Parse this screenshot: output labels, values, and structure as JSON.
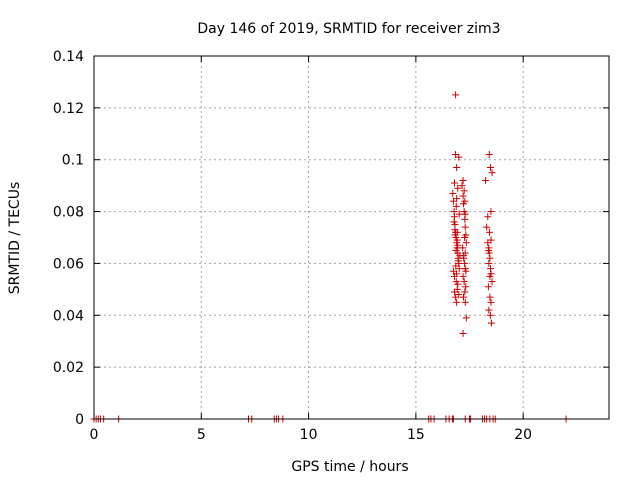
{
  "chart_data": {
    "type": "scatter",
    "title": "Day 146 of 2019, SRMTID for receiver zim3",
    "xlabel": "GPS time / hours",
    "ylabel": "SRMTID / TECUs",
    "xlim": [
      0,
      24
    ],
    "ylim": [
      0,
      0.14
    ],
    "xticks": [
      0,
      5,
      10,
      15,
      20
    ],
    "yticks": [
      0,
      0.02,
      0.04,
      0.06,
      0.08,
      0.1,
      0.12,
      0.14
    ],
    "ytick_labels": [
      "0",
      "0.02",
      "0.04",
      "0.06",
      "0.08",
      "0.1",
      "0.12",
      "0.14"
    ],
    "grid": true,
    "marker": "+",
    "color": "#cc0000",
    "series": [
      {
        "x": [
          0.0,
          0.1,
          0.2,
          0.3,
          0.45,
          1.15,
          7.2,
          7.35,
          8.4,
          8.5,
          8.6,
          8.8,
          15.6,
          15.7,
          15.85,
          16.4,
          16.55,
          16.7,
          16.75,
          17.3,
          17.5,
          17.55,
          18.1,
          18.2,
          18.3,
          18.45,
          18.6,
          18.7,
          22.0,
          16.72,
          16.75,
          16.78,
          16.8,
          16.82,
          16.85,
          16.87,
          16.9,
          16.92,
          16.95,
          16.97,
          17.0,
          17.02,
          16.75,
          16.8,
          16.88,
          16.93,
          17.0,
          16.85,
          16.9,
          16.78,
          16.83,
          16.95,
          17.05,
          16.8,
          16.9,
          17.0,
          16.85,
          16.95,
          16.88,
          16.82,
          16.92,
          16.98,
          16.86,
          16.9,
          16.95,
          16.8,
          16.87,
          16.93,
          17.02,
          16.9,
          16.85,
          17.15,
          17.2,
          17.22,
          17.25,
          17.28,
          17.3,
          17.33,
          17.35,
          17.18,
          17.22,
          17.27,
          17.3,
          17.2,
          17.25,
          17.32,
          17.28,
          17.22,
          17.3,
          17.35,
          17.2,
          17.25,
          17.3,
          17.27,
          17.23,
          17.33,
          17.2,
          17.28,
          17.3,
          18.25,
          18.3,
          18.35,
          18.4,
          18.42,
          18.45,
          18.48,
          18.5,
          18.55,
          18.38,
          18.45,
          18.5,
          18.4,
          18.47,
          18.52,
          18.35,
          18.43,
          18.5,
          18.4,
          18.45,
          18.55,
          18.38,
          18.48,
          18.42,
          18.5
        ],
        "y": [
          0,
          0,
          0,
          0,
          0,
          0,
          0,
          0,
          0,
          0,
          0,
          0,
          0,
          0,
          0,
          0,
          0,
          0,
          0,
          0,
          0,
          0,
          0,
          0,
          0,
          0,
          0,
          0,
          0,
          0.087,
          0.084,
          0.08,
          0.078,
          0.075,
          0.072,
          0.07,
          0.068,
          0.066,
          0.064,
          0.062,
          0.06,
          0.058,
          0.057,
          0.055,
          0.053,
          0.05,
          0.048,
          0.047,
          0.045,
          0.076,
          0.071,
          0.067,
          0.063,
          0.091,
          0.097,
          0.101,
          0.102,
          0.089,
          0.082,
          0.073,
          0.069,
          0.061,
          0.059,
          0.056,
          0.052,
          0.049,
          0.065,
          0.072,
          0.079,
          0.085,
          0.125,
          0.09,
          0.086,
          0.083,
          0.08,
          0.077,
          0.074,
          0.071,
          0.068,
          0.066,
          0.063,
          0.06,
          0.058,
          0.055,
          0.053,
          0.051,
          0.049,
          0.047,
          0.045,
          0.039,
          0.033,
          0.088,
          0.079,
          0.07,
          0.062,
          0.057,
          0.092,
          0.084,
          0.064,
          0.092,
          0.074,
          0.068,
          0.066,
          0.064,
          0.062,
          0.058,
          0.056,
          0.053,
          0.051,
          0.047,
          0.045,
          0.042,
          0.04,
          0.037,
          0.078,
          0.072,
          0.08,
          0.06,
          0.055,
          0.095,
          0.065,
          0.097,
          0.102,
          0.069
        ]
      }
    ]
  }
}
